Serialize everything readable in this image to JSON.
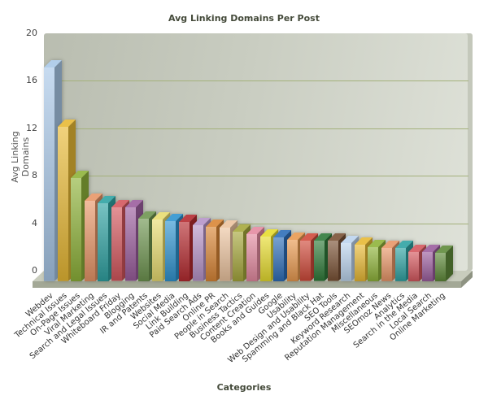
{
  "chart_data": {
    "type": "bar",
    "title": "Avg Linking Domains Per Post",
    "xlabel": "Categories",
    "ylabel": "Avg Linking Domains",
    "ylim": [
      0,
      20
    ],
    "yticks": [
      0,
      4,
      8,
      12,
      16,
      20
    ],
    "grid": true,
    "style": "3d",
    "legend": "none",
    "categories": [
      "Webdev",
      "Technical Issues",
      "On-Page Issues",
      "Viral Marketing",
      "Search and Legal Issues",
      "Whiteboard Friday",
      "Blogging",
      "IR and Patents",
      "Websites",
      "Social Media",
      "Link Building",
      "Paid Search Ads",
      "Online PR",
      "People in Search",
      "Business Tactics",
      "Content Creation",
      "Books and Guides",
      "Google",
      "Usability",
      "Web Design and Usability",
      "Spamming and Black Hat",
      "SEO Tools",
      "Keyword Research",
      "Reputation Management",
      "Miscellaneous",
      "SEOmoz News",
      "Analytics",
      "Search in the Media",
      "Local Search",
      "Online Marketing"
    ],
    "values": [
      18.0,
      13.0,
      8.7,
      6.8,
      6.6,
      6.2,
      6.2,
      5.3,
      5.2,
      5.1,
      5.0,
      4.7,
      4.6,
      4.5,
      4.2,
      4.0,
      3.8,
      3.7,
      3.5,
      3.4,
      3.4,
      3.4,
      3.2,
      3.1,
      2.9,
      2.8,
      2.8,
      2.5,
      2.5,
      2.4
    ],
    "colors": [
      "#a9c8e8",
      "#e8b935",
      "#8fb33a",
      "#e89668",
      "#2fa3a3",
      "#d4575e",
      "#9b5e9e",
      "#6e9550",
      "#e8dc70",
      "#2f93cf",
      "#b52b30",
      "#b694c8",
      "#d98636",
      "#ecc4a0",
      "#a6a83c",
      "#e48aa0",
      "#e6dc2e",
      "#2e6eb8",
      "#e89a50",
      "#d04a3a",
      "#2f7a3a",
      "#7a5236",
      "#bcd4ee",
      "#e8b935",
      "#8fb33a",
      "#e89668",
      "#2fa3a3",
      "#d4575e",
      "#9b5e9e",
      "#5f8a3a"
    ]
  }
}
